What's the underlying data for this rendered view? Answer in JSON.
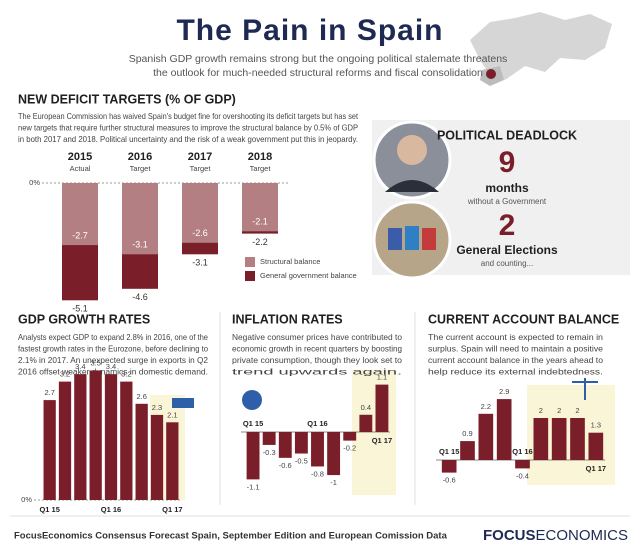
{
  "header": {
    "title": "The Pain in Spain",
    "subtitle": [
      "Spanish GDP growth remains strong but the ongoing political stalemate threatens",
      "the outlook for much-needed structural reforms and fiscal consolidation"
    ]
  },
  "political": {
    "title": "POLITICAL DEADLOCK",
    "months_number": "9",
    "months_label": "months",
    "months_note": "without a Government",
    "elections_number": "2",
    "elections_label": "General Elections",
    "elections_note": "and counting..."
  },
  "chart_data": [
    {
      "type": "bar",
      "title": "NEW DEFICIT TARGETS  (% OF GDP)",
      "description": [
        "The European Commission has waived Spain's budget fine for overshooting its deficit targets but has set",
        "new targets that require further structural measures to improve the structural balance by 0.5% of GDP",
        "in both 2017 and 2018. Political uncertainty and the risk of a weak government put this in jeopardy."
      ],
      "categories": [
        "2015",
        "2016",
        "2017",
        "2018"
      ],
      "category_notes": [
        "Actual",
        "Target",
        "Target",
        "Target"
      ],
      "series": [
        {
          "name": "Structural balance",
          "color": "#b47f82",
          "values": [
            -2.7,
            -3.1,
            -2.6,
            -2.1
          ]
        },
        {
          "name": "General government balance",
          "color": "#7a1f2a",
          "values": [
            -5.1,
            -4.6,
            -3.1,
            -2.2
          ]
        }
      ],
      "ylim": [
        -5.5,
        0
      ],
      "yticks": [
        {
          "value": 0,
          "label": "0%"
        }
      ]
    },
    {
      "type": "bar",
      "title": "GDP GROWTH RATES",
      "description": [
        "Analysts expect GDP to expand 2.8% in 2016, one of the",
        "fastest growth rates in the Eurozone, before declining to",
        "2.1% in 2017. An unexpected surge in exports in Q2",
        "2016 offset weaker dynamics in domestic demand."
      ],
      "categories": [
        "Q1 15",
        null,
        null,
        null,
        "Q1 16",
        null,
        null,
        null,
        "Q1 17"
      ],
      "values": [
        2.7,
        3.2,
        3.4,
        3.5,
        3.4,
        3.2,
        2.6,
        2.3,
        2.1
      ],
      "color": "#7a1f2a",
      "ylim": [
        0,
        4
      ],
      "yticks": [
        {
          "value": 0,
          "label": "0%"
        }
      ]
    },
    {
      "type": "bar",
      "title": "INFLATION RATES",
      "description": [
        "Negative consumer prices have contributed to",
        "economic growth in recent quarters by boosting",
        "private consumption, though they look set to",
        "trend upwards again."
      ],
      "categories": [
        "Q1 15",
        null,
        null,
        null,
        "Q1 16",
        null,
        null,
        null,
        "Q1 17"
      ],
      "values": [
        -1.1,
        -0.3,
        -0.6,
        -0.5,
        -0.8,
        -1.0,
        -0.2,
        0.4,
        1.1
      ],
      "color": "#7a1f2a",
      "ylim": [
        -1.3,
        1.3
      ]
    },
    {
      "type": "bar",
      "title": "CURRENT ACCOUNT BALANCE",
      "description": [
        "The current account is expected to remain in",
        "surplus. Spain will need to maintain a positive",
        "current account balance in the years ahead to",
        "help reduce its external indebtedness."
      ],
      "categories": [
        "Q1 15",
        null,
        null,
        null,
        "Q1 16",
        null,
        null,
        null,
        "Q1 17"
      ],
      "values": [
        -0.6,
        0.9,
        2.2,
        2.9,
        -0.4,
        2.0,
        2.0,
        2.0,
        1.3
      ],
      "color": "#7a1f2a",
      "ylim": [
        -1,
        3
      ]
    }
  ],
  "footer": {
    "source": "FocusEconomics Consensus Forecast Spain, September Edition and European Comission Data",
    "brand_bold": "FOCUS",
    "brand_rest": "ECONOMICS"
  }
}
